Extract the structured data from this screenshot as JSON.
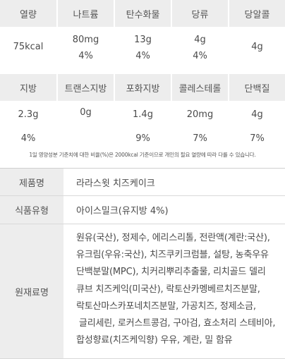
{
  "nutrition_top": {
    "headers": [
      "열량",
      "나트륨",
      "탄수화물",
      "당류",
      "당알콜"
    ],
    "values": [
      {
        "main": "75kcal",
        "pct": ""
      },
      {
        "main": "80mg",
        "pct": "4%"
      },
      {
        "main": "13g",
        "pct": "4%"
      },
      {
        "main": "4g",
        "pct": "4%"
      },
      {
        "main": "4g",
        "pct": ""
      }
    ]
  },
  "nutrition_bottom": {
    "headers": [
      "지방",
      "트랜스지방",
      "포화지방",
      "콜레스테롤",
      "단백질"
    ],
    "values": [
      {
        "main": "2.3g",
        "pct": "4%"
      },
      {
        "main": "0g",
        "pct": ""
      },
      {
        "main": "1.4g",
        "pct": "9%"
      },
      {
        "main": "20mg",
        "pct": "7%"
      },
      {
        "main": "4g",
        "pct": "7%"
      }
    ]
  },
  "note": "1일 영양성분 기준치에 대한 비율(%)은 2000kcal 기준이므로 개인의 필요 열량에 따라 다를 수 있습니다.",
  "product_info": {
    "name_label": "제품명",
    "name_value": "라라스윗 치즈케이크",
    "type_label": "식품유형",
    "type_value": "아이스밀크(유지방 4%)",
    "ingredients_label": "원재료명",
    "ingredients_lines": [
      "원유(국산), 정제수, 에리스리톨, 전란액(계란:국산),",
      "유크림(우유:국산), 치즈쿠키크럼블, 설탕, 농축우유",
      "단백분말(MPC), 치커리뿌리추출물, 리치골드 델리",
      "큐브 치즈케익(미국산), 락토산카멩베르치즈분말,",
      "락토산마스카포네치즈분말, 가공치즈, 정제소금,",
      " 글리세린, 로커스트콩검, 구아검, 효소처리 스테비아,",
      "합성향료(치즈케익향) 우유, 계란, 밀 함유"
    ]
  }
}
